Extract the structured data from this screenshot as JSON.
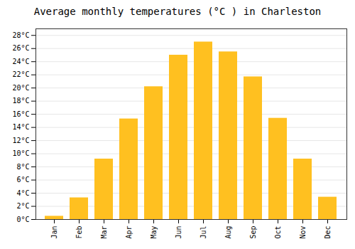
{
  "chart_data": {
    "type": "bar",
    "title": "Average monthly temperatures (°C ) in Charleston",
    "categories": [
      "Jan",
      "Feb",
      "Mar",
      "Apr",
      "May",
      "Jun",
      "Jul",
      "Aug",
      "Sep",
      "Oct",
      "Nov",
      "Dec"
    ],
    "values": [
      0.5,
      3.3,
      9.2,
      15.3,
      20.2,
      25.0,
      27.0,
      25.5,
      21.7,
      15.4,
      9.2,
      3.4
    ],
    "color": "#FFC020",
    "ylim": [
      0,
      29
    ],
    "yticks": [
      {
        "value": 0,
        "label": "0°C"
      },
      {
        "value": 2,
        "label": "2°C"
      },
      {
        "value": 4,
        "label": "4°C"
      },
      {
        "value": 6,
        "label": "6°C"
      },
      {
        "value": 8,
        "label": "8°C"
      },
      {
        "value": 10,
        "label": "10°C"
      },
      {
        "value": 12,
        "label": "12°C"
      },
      {
        "value": 14,
        "label": "14°C"
      },
      {
        "value": 16,
        "label": "16°C"
      },
      {
        "value": 18,
        "label": "18°C"
      },
      {
        "value": 20,
        "label": "20°C"
      },
      {
        "value": 22,
        "label": "22°C"
      },
      {
        "value": 24,
        "label": "24°C"
      },
      {
        "value": 26,
        "label": "26°C"
      },
      {
        "value": 28,
        "label": "28°C"
      }
    ],
    "grid": true
  }
}
